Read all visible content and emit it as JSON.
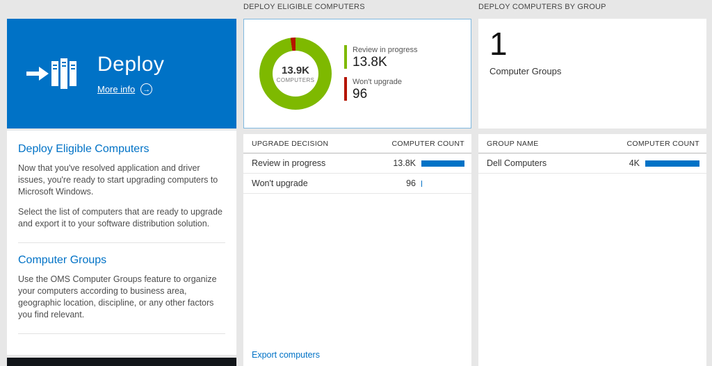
{
  "colors": {
    "accent_blue": "#0072c6",
    "donut_green": "#7eb900",
    "donut_red": "#b51400",
    "bar_blue": "#0072c6"
  },
  "icons": {
    "arrow_right": "→"
  },
  "left": {
    "tile": {
      "title": "Deploy",
      "more_info": "More info"
    },
    "sections": [
      {
        "heading": "Deploy Eligible Computers",
        "paragraphs": [
          "Now that you've resolved application and driver issues, you're ready to start upgrading computers to Microsoft Windows.",
          "Select the list of computers that are ready to upgrade and export it to your software distribution solution."
        ]
      },
      {
        "heading": "Computer Groups",
        "paragraphs": [
          "Use the OMS Computer Groups feature to organize your computers according to business area, geographic location, discipline, or any other factors you find relevant."
        ]
      }
    ]
  },
  "middle": {
    "title": "DEPLOY ELIGIBLE COMPUTERS",
    "donut": {
      "center_value": "13.9K",
      "center_label": "COMPUTERS",
      "legend": [
        {
          "label": "Review in progress",
          "value": "13.8K",
          "color": "#7eb900"
        },
        {
          "label": "Won't upgrade",
          "value": "96",
          "color": "#b51400"
        }
      ]
    },
    "table": {
      "headers": [
        "UPGRADE DECISION",
        "COMPUTER COUNT"
      ],
      "rows": [
        {
          "label": "Review in progress",
          "count": "13.8K",
          "bar_percent": 100
        },
        {
          "label": "Won't upgrade",
          "count": "96",
          "bar_percent": 2
        }
      ]
    },
    "export_link": "Export computers"
  },
  "right": {
    "title": "DEPLOY COMPUTERS BY GROUP",
    "summary": {
      "value": "1",
      "label": "Computer Groups"
    },
    "table": {
      "headers": [
        "GROUP NAME",
        "COMPUTER COUNT"
      ],
      "rows": [
        {
          "label": "Dell Computers",
          "count": "4K",
          "bar_percent": 100
        }
      ]
    }
  },
  "chart_data": [
    {
      "type": "pie",
      "title": "Deploy Eligible Computers",
      "center_label": "13.9K COMPUTERS",
      "slices": [
        {
          "label": "Review in progress",
          "value": 13800,
          "color": "#7eb900"
        },
        {
          "label": "Won't upgrade",
          "value": 96,
          "color": "#b51400"
        }
      ],
      "legend_position": "right"
    },
    {
      "type": "table",
      "title": "Upgrade decision counts",
      "columns": [
        "UPGRADE DECISION",
        "COMPUTER COUNT"
      ],
      "rows": [
        [
          "Review in progress",
          "13.8K"
        ],
        [
          "Won't upgrade",
          "96"
        ]
      ]
    },
    {
      "type": "table",
      "title": "Computers by group",
      "columns": [
        "GROUP NAME",
        "COMPUTER COUNT"
      ],
      "rows": [
        [
          "Dell Computers",
          "4K"
        ]
      ]
    }
  ]
}
